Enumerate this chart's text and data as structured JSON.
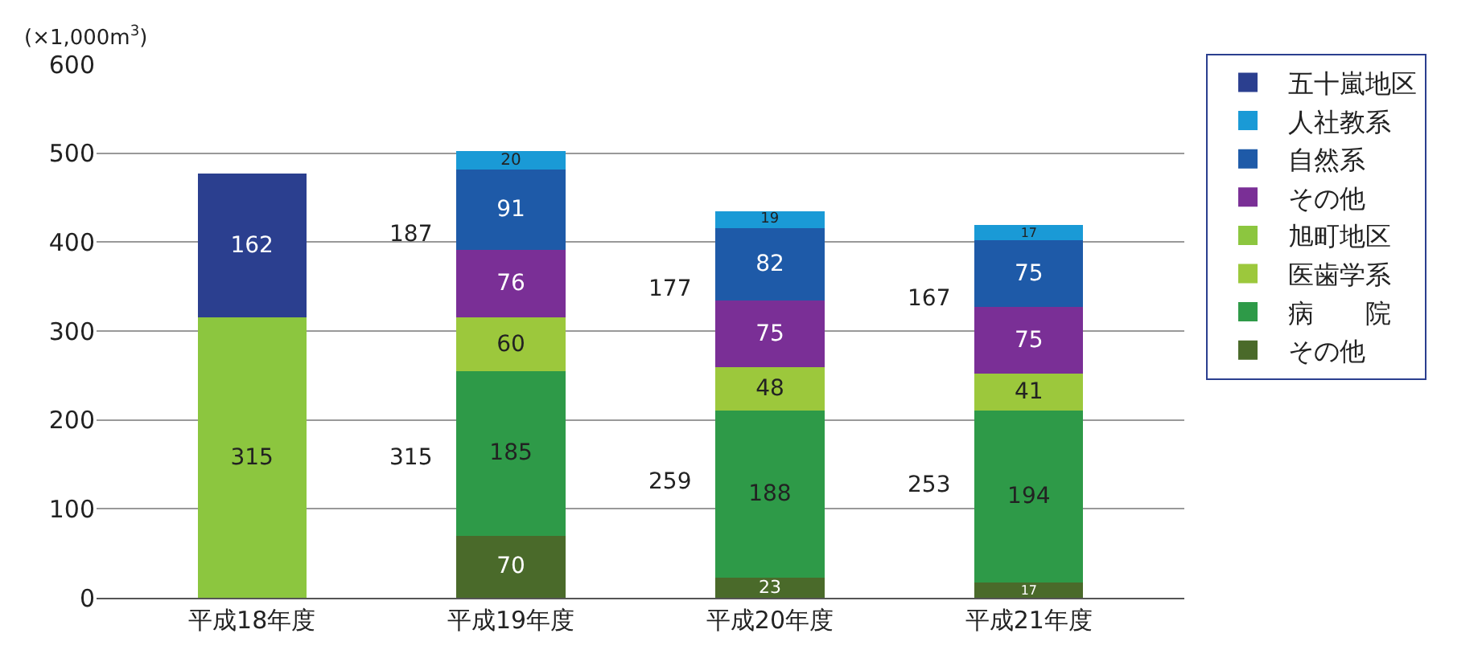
{
  "chart_data": {
    "type": "bar",
    "stacked": true,
    "categories": [
      "平成18年度",
      "平成19年度",
      "平成20年度",
      "平成21年度"
    ],
    "ylabel": "(×1,000m$^{3}$)",
    "ylim": [
      0,
      600
    ],
    "yticks": [
      0,
      100,
      200,
      300,
      400,
      500,
      600
    ],
    "grid": "y",
    "legend": "right",
    "data_labels": true,
    "series": [
      {
        "name": "その他",
        "color": "#4a6a2a",
        "values": [
          null,
          70,
          23,
          17
        ]
      },
      {
        "name": "病　　院",
        "color": "#2e9a48",
        "values": [
          null,
          185,
          188,
          194
        ]
      },
      {
        "name": "医歯学系",
        "color": "#9cc83c",
        "values": [
          null,
          60,
          48,
          41
        ]
      },
      {
        "name": "旭町地区",
        "color": "#8cc63f",
        "values": [
          315,
          null,
          null,
          null
        ]
      },
      {
        "name": "その他",
        "color": "#7a2f96",
        "values": [
          null,
          76,
          75,
          75
        ]
      },
      {
        "name": "自然系",
        "color": "#1e5aa8",
        "values": [
          null,
          91,
          82,
          75
        ]
      },
      {
        "name": "人社教系",
        "color": "#1a9ad6",
        "values": [
          null,
          20,
          19,
          17
        ]
      },
      {
        "name": "五十嵐地区",
        "color": "#2b3f8f",
        "values": [
          162,
          null,
          null,
          null
        ]
      }
    ],
    "annotations": [
      "315",
      "187",
      "259",
      "177",
      "253",
      "167"
    ]
  }
}
